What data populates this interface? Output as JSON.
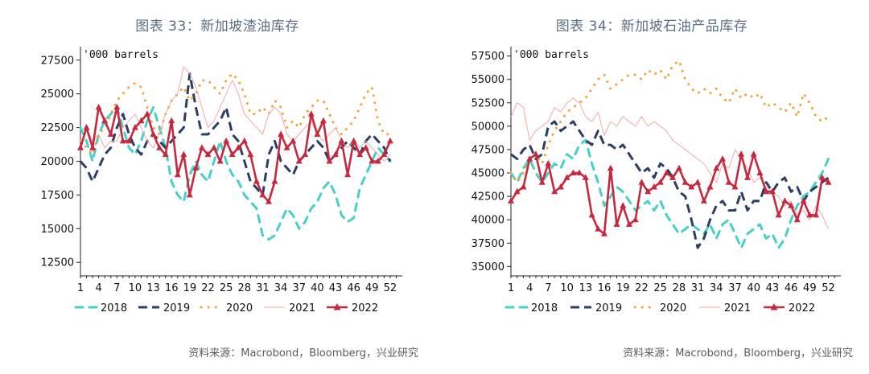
{
  "colors": {
    "2018": "#46d0c8",
    "2019": "#2c3e61",
    "2020": "#f2a33a",
    "2021": "#f1a9a9",
    "2022": "#c8283e",
    "title": "#5b6f86",
    "axis": "#222222"
  },
  "charts": [
    {
      "title": "图表 33：新加坡渣油库存",
      "source": "资料来源：Macrobond，Bloomberg，兴业研究",
      "chart_data": {
        "type": "line",
        "unit_label": "'000 barrels",
        "ylim": [
          11500,
          28500
        ],
        "yticks": [
          12500,
          15000,
          17500,
          20000,
          22500,
          25000,
          27500
        ],
        "xlim": [
          1,
          54
        ],
        "xticks": [
          1,
          4,
          7,
          10,
          13,
          16,
          19,
          22,
          25,
          28,
          31,
          34,
          37,
          40,
          43,
          46,
          49,
          52
        ],
        "legend_position": "bottom",
        "series": [
          {
            "name": "2018",
            "values": [
              22500,
              21500,
              20000,
              22000,
              23000,
              23500,
              24000,
              22500,
              21000,
              20500,
              21500,
              23000,
              24000,
              22500,
              21000,
              18500,
              17500,
              17000,
              19000,
              20000,
              19000,
              18500,
              20000,
              21500,
              20000,
              19000,
              18500,
              17500,
              17000,
              16500,
              14500,
              14200,
              14500,
              15500,
              16500,
              16000,
              15000,
              15500,
              16500,
              17000,
              18000,
              18500,
              17500,
              16000,
              15500,
              15800,
              18000,
              19000,
              20000,
              21000,
              20500,
              20000
            ]
          },
          {
            "name": "2019",
            "values": [
              20000,
              19500,
              18500,
              19500,
              20500,
              21000,
              22500,
              23500,
              22000,
              21000,
              20500,
              21500,
              22000,
              21500,
              21000,
              21500,
              22000,
              22500,
              26500,
              24000,
              22000,
              22000,
              22500,
              23000,
              24000,
              22000,
              21500,
              20000,
              18500,
              18000,
              17500,
              20500,
              21500,
              20000,
              19500,
              19000,
              20000,
              20500,
              21000,
              21500,
              21000,
              20000,
              20500,
              21000,
              21500,
              21000,
              20500,
              21500,
              22000,
              21500,
              21000,
              20000
            ]
          },
          {
            "name": "2020",
            "values": [
              21500,
              21000,
              20500,
              22000,
              22500,
              23500,
              24500,
              25000,
              25500,
              25800,
              25500,
              24000,
              22500,
              22000,
              23500,
              24500,
              25000,
              25500,
              24500,
              25000,
              26000,
              26000,
              25500,
              25000,
              26000,
              26500,
              26000,
              25000,
              23500,
              23500,
              24000,
              23500,
              24500,
              24000,
              22500,
              23000,
              22500,
              23500,
              24000,
              24500,
              24500,
              23500,
              22500,
              22000,
              22500,
              23000,
              24000,
              25000,
              25500,
              23000,
              22000,
              22000
            ]
          },
          {
            "name": "2021",
            "values": [
              21000,
              22500,
              21500,
              22000,
              21000,
              21500,
              21500,
              22500,
              23000,
              23500,
              22500,
              21500,
              21000,
              22000,
              23500,
              24500,
              25000,
              27000,
              26500,
              25500,
              24000,
              22500,
              23000,
              24000,
              25000,
              26000,
              25000,
              23500,
              23000,
              22500,
              22000,
              23500,
              24000,
              23500,
              22000,
              21500,
              22000,
              22500,
              23000,
              22000,
              21500,
              22000,
              22500,
              21500,
              21000,
              21500,
              21000,
              21500,
              21000,
              20500,
              20000,
              20500
            ]
          },
          {
            "name": "2022",
            "values": [
              21000,
              22500,
              21000,
              24000,
              23000,
              22000,
              24000,
              21500,
              21500,
              22500,
              23000,
              23500,
              22000,
              21000,
              20500,
              23000,
              19000,
              20500,
              17500,
              19500,
              21000,
              20500,
              21000,
              20000,
              21500,
              20500,
              21000,
              21500,
              20500,
              18500,
              17500,
              17000,
              18500,
              22000,
              21000,
              21500,
              20000,
              20500,
              23500,
              22000,
              23000,
              20000,
              20500,
              21500,
              19000,
              21500,
              20500,
              21000,
              20000,
              20000,
              20500,
              21500
            ]
          }
        ]
      }
    },
    {
      "title": "图表 34：新加坡石油产品库存",
      "source": "资料来源：Macrobond，Bloomberg，兴业研究",
      "chart_data": {
        "type": "line",
        "unit_label": "'000 barrels",
        "ylim": [
          34000,
          58500
        ],
        "yticks": [
          35000,
          37500,
          40000,
          42500,
          45000,
          47500,
          50000,
          52500,
          55000,
          57500
        ],
        "xlim": [
          1,
          54
        ],
        "xticks": [
          1,
          4,
          7,
          10,
          13,
          16,
          19,
          22,
          25,
          28,
          31,
          34,
          37,
          40,
          43,
          46,
          49,
          52
        ],
        "legend_position": "bottom",
        "series": [
          {
            "name": "2018",
            "values": [
              45000,
              44000,
              45500,
              46500,
              45000,
              44000,
              45000,
              46000,
              45500,
              47000,
              46500,
              48000,
              48500,
              46000,
              44000,
              41500,
              42500,
              43500,
              43000,
              42000,
              41000,
              41500,
              42000,
              41000,
              42000,
              40500,
              39500,
              38500,
              39000,
              39500,
              39000,
              38500,
              39500,
              38000,
              39500,
              40000,
              38500,
              37000,
              38500,
              39000,
              39500,
              38000,
              38500,
              37000,
              38000,
              40000,
              41500,
              42500,
              43000,
              44000,
              45000,
              46500
            ]
          },
          {
            "name": "2019",
            "values": [
              47000,
              46500,
              47500,
              48000,
              46500,
              47000,
              50000,
              50500,
              49500,
              50000,
              50500,
              49500,
              48500,
              48000,
              49500,
              48000,
              48000,
              47500,
              48000,
              47000,
              46000,
              45000,
              45500,
              44500,
              46000,
              45500,
              44500,
              43000,
              42500,
              40000,
              37000,
              38000,
              40000,
              41500,
              42000,
              41000,
              41000,
              43000,
              41000,
              42000,
              42000,
              44000,
              43000,
              44000,
              44500,
              43000,
              43500,
              42000,
              43000,
              43500,
              44000,
              44500
            ]
          },
          {
            "name": "2020",
            "values": [
              45000,
              44000,
              45000,
              46500,
              47000,
              46000,
              48000,
              49500,
              50500,
              51500,
              52000,
              52500,
              53000,
              54000,
              55000,
              55500,
              54000,
              54500,
              55000,
              55500,
              55500,
              55000,
              56000,
              55500,
              56000,
              55000,
              56500,
              57000,
              55000,
              54000,
              53500,
              54000,
              53500,
              54000,
              53000,
              52500,
              54000,
              53000,
              53500,
              53000,
              53500,
              52000,
              52500,
              52000,
              51500,
              52500,
              51000,
              53500,
              52500,
              51000,
              50500,
              51000
            ]
          },
          {
            "name": "2021",
            "values": [
              51000,
              52500,
              52000,
              48500,
              49500,
              50000,
              50500,
              52000,
              51500,
              52500,
              53000,
              52500,
              51000,
              50500,
              51500,
              49000,
              50500,
              50000,
              51000,
              50500,
              50000,
              51000,
              50000,
              50500,
              50000,
              49500,
              48500,
              48000,
              47500,
              47000,
              46500,
              46000,
              45000,
              44000,
              46000,
              45500,
              47500,
              46500,
              45500,
              44000,
              44500,
              43500,
              43000,
              42500,
              41500,
              42000,
              40500,
              41000,
              40000,
              41500,
              40500,
              39000
            ]
          },
          {
            "name": "2022",
            "values": [
              42000,
              43000,
              43500,
              46500,
              47000,
              44000,
              46000,
              43000,
              43500,
              44500,
              45000,
              45000,
              44500,
              40500,
              39000,
              38500,
              45500,
              39500,
              41500,
              39500,
              40000,
              44000,
              43000,
              43500,
              44000,
              45000,
              44500,
              45500,
              44000,
              43500,
              44000,
              42000,
              43500,
              45500,
              46500,
              44000,
              43500,
              47000,
              44500,
              47000,
              45000,
              43000,
              43000,
              40500,
              42000,
              41500,
              40000,
              42000,
              40500,
              40500,
              44500,
              44000
            ]
          }
        ]
      }
    }
  ]
}
